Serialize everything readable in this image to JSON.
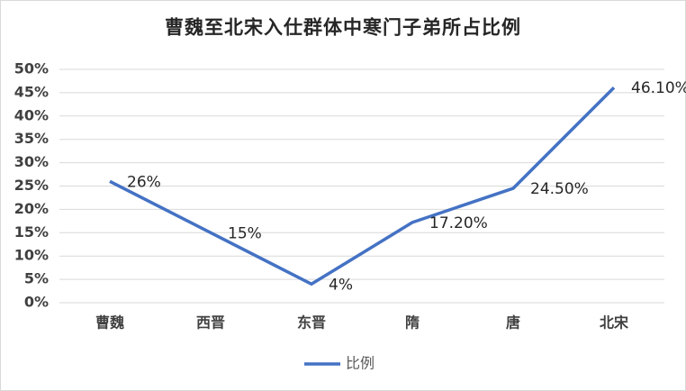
{
  "chart_data": {
    "type": "line",
    "title": "曹魏至北宋入仕群体中寒门子弟所占比例",
    "categories": [
      "曹魏",
      "西晋",
      "东晋",
      "隋",
      "唐",
      "北宋"
    ],
    "series": [
      {
        "name": "比例",
        "color": "#4472c4",
        "values": [
          26,
          15,
          4,
          17.2,
          24.5,
          46.1
        ],
        "value_labels": [
          "26%",
          "15%",
          "4%",
          "17.20%",
          "24.50%",
          "46.10%"
        ]
      }
    ],
    "ylim": [
      0,
      50
    ],
    "yticks": [
      {
        "value": 0,
        "label": "0%"
      },
      {
        "value": 5,
        "label": "5%"
      },
      {
        "value": 10,
        "label": "10%"
      },
      {
        "value": 15,
        "label": "15%"
      },
      {
        "value": 20,
        "label": "20%"
      },
      {
        "value": 25,
        "label": "25%"
      },
      {
        "value": 30,
        "label": "30%"
      },
      {
        "value": 35,
        "label": "35%"
      },
      {
        "value": 40,
        "label": "40%"
      },
      {
        "value": 45,
        "label": "45%"
      },
      {
        "value": 50,
        "label": "50%"
      }
    ],
    "grid": true,
    "legend": "bottom"
  }
}
